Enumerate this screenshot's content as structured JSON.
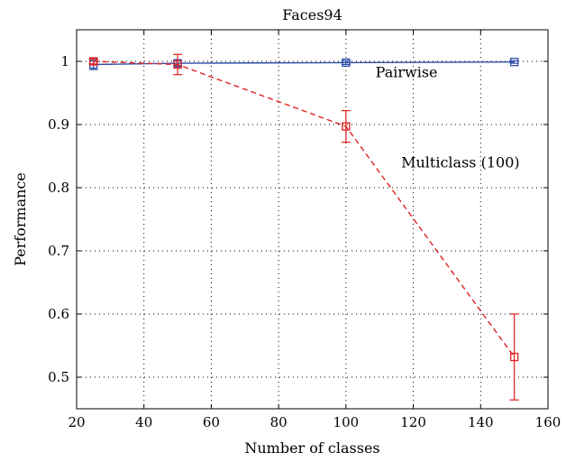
{
  "chart_data": {
    "type": "line",
    "title": "Faces94",
    "xlabel": "Number of classes",
    "ylabel": "Performance",
    "xlim": [
      20,
      160
    ],
    "ylim": [
      0.45,
      1.05
    ],
    "x_ticks": [
      20,
      40,
      60,
      80,
      100,
      120,
      140,
      160
    ],
    "y_ticks": [
      0.5,
      0.6,
      0.7,
      0.8,
      0.9,
      1
    ],
    "x_tick_labels": [
      "20",
      "40",
      "60",
      "80",
      "100",
      "120",
      "140",
      "160"
    ],
    "y_tick_labels": [
      "0.5",
      "0.6",
      "0.7",
      "0.8",
      "0.9",
      "1"
    ],
    "grid": true,
    "series": [
      {
        "name": "Pairwise",
        "color": "#2f4fa8",
        "line_style": "solid",
        "marker": "square",
        "x": [
          25,
          50,
          100,
          150
        ],
        "y": [
          0.995,
          0.997,
          0.998,
          0.999
        ],
        "err": [
          0.008,
          0.004,
          0.003,
          0.002
        ]
      },
      {
        "name": "Multiclass (100)",
        "color": "#e02020",
        "line_style": "dashed",
        "marker": "square",
        "x": [
          25,
          50,
          100,
          150
        ],
        "y": [
          1.0,
          0.995,
          0.897,
          0.532
        ],
        "err": [
          0.004,
          0.016,
          0.025,
          0.068
        ]
      }
    ],
    "annotations": [
      {
        "text": "Pairwise",
        "x": 118,
        "y": 0.975
      },
      {
        "text": "Multiclass (100)",
        "x": 134,
        "y": 0.832
      }
    ]
  }
}
